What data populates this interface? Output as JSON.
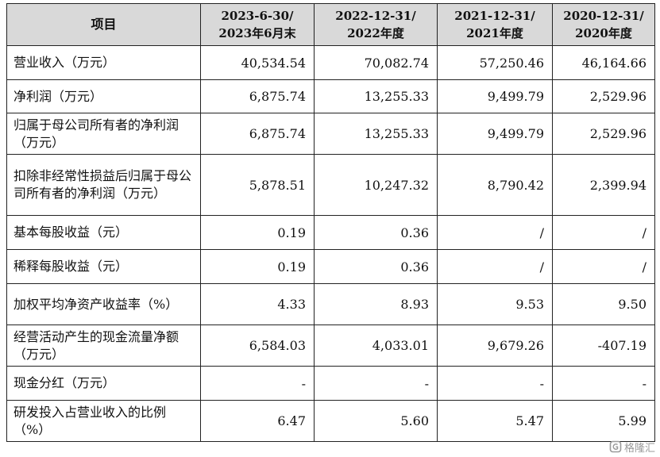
{
  "table": {
    "headers": [
      {
        "line1": "项目",
        "line2": ""
      },
      {
        "line1": "2023-6-30/",
        "line2": "2023年6月末"
      },
      {
        "line1": "2022-12-31/",
        "line2": "2022年度"
      },
      {
        "line1": "2021-12-31/",
        "line2": "2021年度"
      },
      {
        "line1": "2020-12-31/",
        "line2": "2020年度"
      }
    ],
    "rows": [
      {
        "label": "营业收入（万元）",
        "values": [
          "40,534.54",
          "70,082.74",
          "57,250.46",
          "46,164.66"
        ]
      },
      {
        "label": "净利润（万元）",
        "values": [
          "6,875.74",
          "13,255.33",
          "9,499.79",
          "2,529.96"
        ]
      },
      {
        "label": "归属于母公司所有者的净利润（万元）",
        "values": [
          "6,875.74",
          "13,255.33",
          "9,499.79",
          "2,529.96"
        ]
      },
      {
        "label": "扣除非经常性损益后归属于母公司所有者的净利润（万元）",
        "values": [
          "5,878.51",
          "10,247.32",
          "8,790.42",
          "2,399.94"
        ]
      },
      {
        "label": "基本每股收益（元）",
        "values": [
          "0.19",
          "0.36",
          "/",
          "/"
        ]
      },
      {
        "label": "稀释每股收益（元）",
        "values": [
          "0.19",
          "0.36",
          "/",
          "/"
        ]
      },
      {
        "label": "加权平均净资产收益率（%）",
        "values": [
          "4.33",
          "8.93",
          "9.53",
          "9.50"
        ]
      },
      {
        "label": "经营活动产生的现金流量净额（万元）",
        "values": [
          "6,584.03",
          "4,033.01",
          "9,679.26",
          "-407.19"
        ]
      },
      {
        "label": "现金分红（万元）",
        "values": [
          "-",
          "-",
          "-",
          "-"
        ]
      },
      {
        "label": "研发投入占营业收入的比例（%）",
        "values": [
          "6.47",
          "5.60",
          "5.47",
          "5.99"
        ]
      }
    ]
  },
  "watermark": {
    "text": "格隆汇",
    "icon": "gelonghui-logo-icon"
  }
}
